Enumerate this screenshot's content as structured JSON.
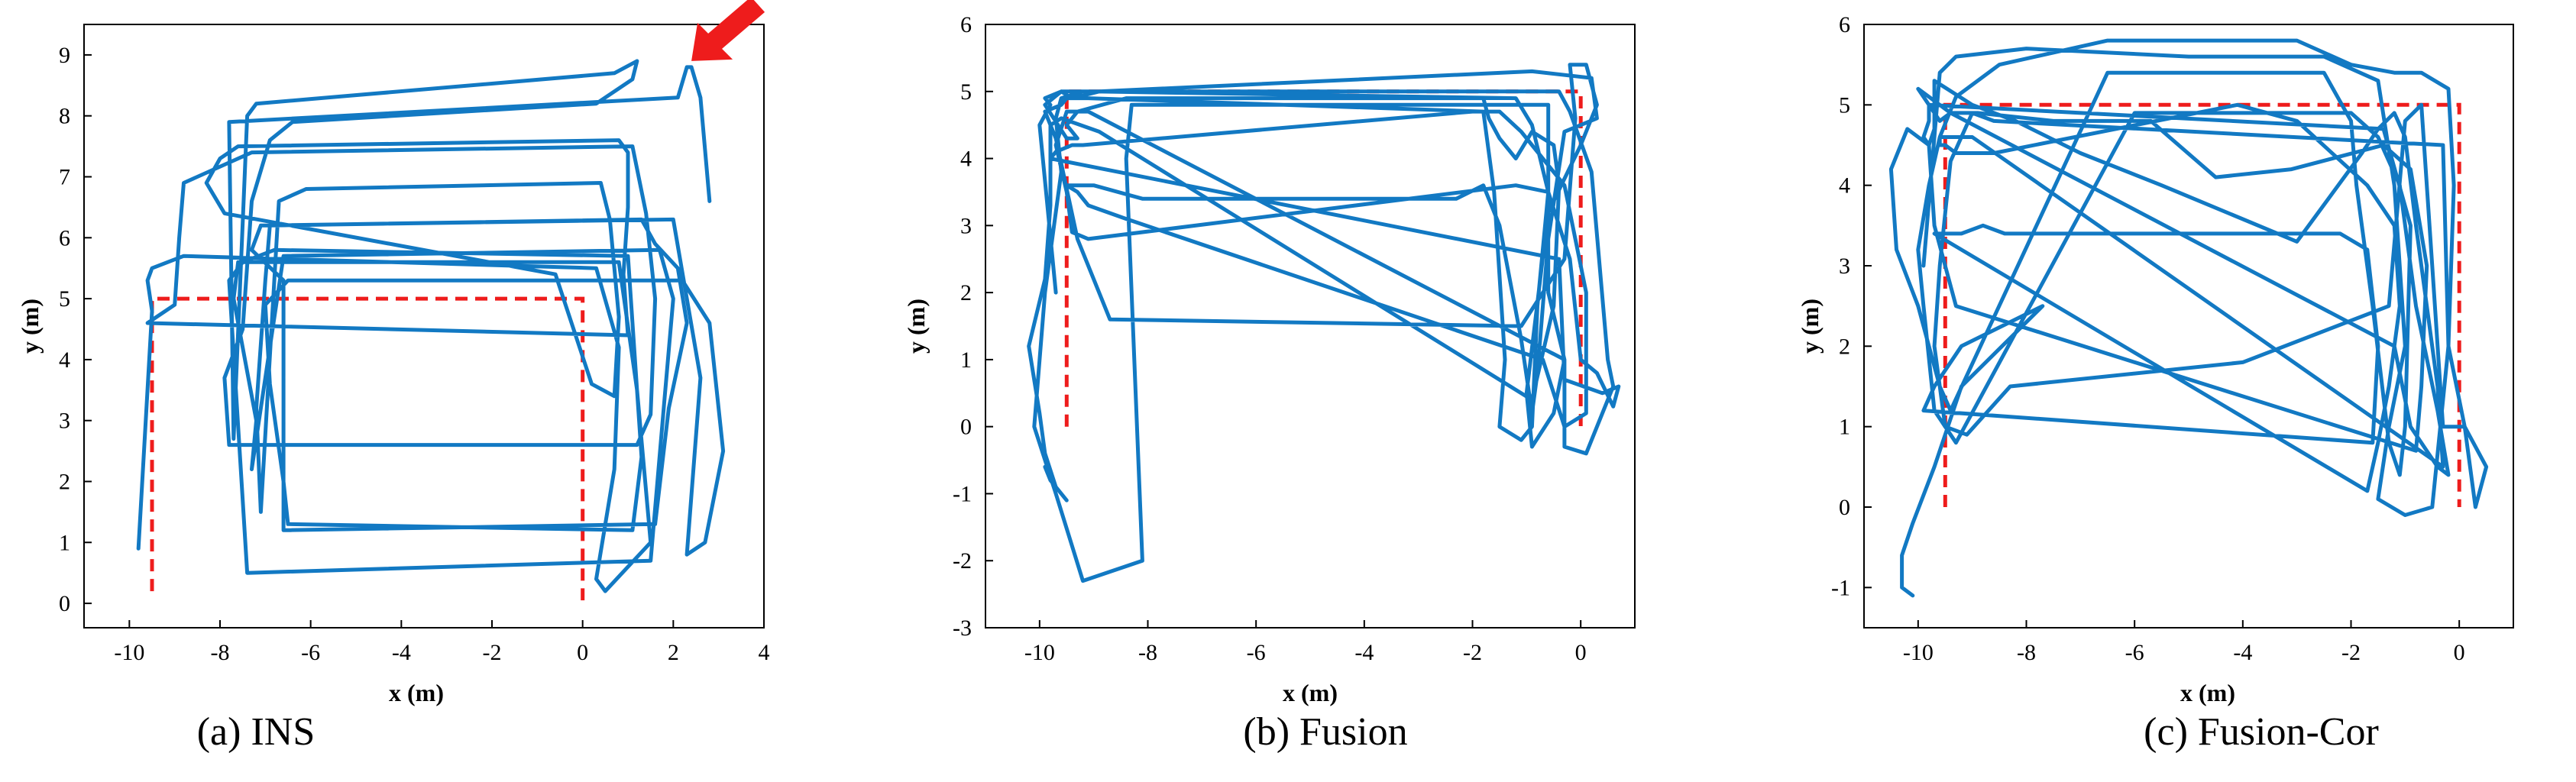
{
  "chart_data": [
    {
      "type": "line",
      "caption": "(a) INS",
      "xlabel": "x (m)",
      "ylabel": "y (m)",
      "xlim": [
        -11,
        4
      ],
      "ylim": [
        -0.4,
        9.5
      ],
      "xticks": [
        -10,
        -8,
        -6,
        -4,
        -2,
        0,
        2,
        4
      ],
      "yticks": [
        0,
        1,
        2,
        3,
        4,
        5,
        6,
        7,
        8,
        9
      ],
      "grid": false,
      "annotation": "red arrow pointing to end of trajectory (top-right)",
      "colors": {
        "trajectory": "#1279c3",
        "reference": "#ee1c1c"
      },
      "series": [
        {
          "style": "dashed-red",
          "x": [
            -9.5,
            -9.5,
            0,
            0
          ],
          "y": [
            0.2,
            5.0,
            5.0,
            0.05
          ]
        },
        {
          "style": "solid-blue",
          "x": [
            -9.8,
            -9.5,
            -9.6,
            -9.5,
            -8.8,
            0.3,
            0.8,
            0.7,
            0.3,
            0.5,
            1.5,
            1.2,
            0.8,
            -7.6,
            -7.7,
            -7.2,
            -7.3,
            -6.6,
            1.7,
            2.0,
            1.8,
            1.5,
            -7.4,
            -7.8,
            -7.5,
            -6.8,
            1.0,
            1.3,
            1.1,
            -6.5,
            -6.6,
            -6.9,
            -7.0,
            -6.5,
            2.2,
            2.8,
            3.1,
            2.7,
            2.3,
            2.6,
            2.0,
            -7.1,
            -7.3,
            -6.6,
            -6.6,
            1.6,
            1.9,
            2.3,
            2.1,
            1.6,
            1.3,
            -6.9,
            -7.0,
            -7.2,
            -7.1,
            -6.7,
            -6.1,
            0.4,
            0.6,
            0.8,
            0.7,
            0.2,
            -0.6,
            -7.9,
            -8.3,
            -8.0,
            -7.6,
            0.8,
            1.0,
            1.0,
            0.9,
            1.0,
            -9.6,
            -9.0,
            -8.9,
            -8.8,
            -7.3,
            1.1,
            1.4,
            1.6,
            1.5,
            1.2,
            -7.8,
            -7.9,
            -7.5,
            -7.3,
            -6.9,
            -6.4,
            0.3,
            1.1,
            1.2,
            0.7,
            -7.2,
            -7.4,
            -7.7,
            -7.8,
            2.1,
            2.3,
            2.4,
            2.6,
            2.8
          ],
          "y": [
            0.9,
            4.8,
            5.3,
            5.5,
            5.7,
            5.5,
            4.2,
            2.2,
            0.4,
            0.2,
            1.0,
            3.5,
            5.6,
            5.6,
            5.0,
            3.0,
            2.2,
            5.7,
            5.8,
            5.0,
            3.3,
            0.7,
            0.5,
            5.3,
            5.6,
            5.8,
            5.7,
            2.4,
            1.2,
            1.3,
            2.0,
            3.6,
            4.9,
            5.3,
            5.3,
            4.6,
            2.5,
            1.0,
            0.8,
            3.7,
            6.3,
            6.2,
            5.8,
            5.3,
            1.2,
            1.3,
            3.2,
            4.6,
            5.5,
            5.9,
            6.3,
            6.2,
            5.3,
            3.2,
            1.5,
            6.6,
            6.8,
            6.9,
            6.3,
            4.7,
            3.4,
            3.6,
            5.4,
            6.4,
            6.9,
            7.3,
            7.5,
            7.6,
            7.4,
            6.5,
            5.4,
            4.4,
            4.6,
            4.9,
            6.0,
            6.9,
            7.4,
            7.5,
            6.4,
            5.0,
            3.1,
            2.6,
            2.6,
            3.7,
            4.5,
            6.6,
            7.6,
            7.9,
            8.2,
            8.6,
            8.9,
            8.7,
            8.2,
            8.0,
            2.7,
            7.9,
            8.3,
            8.8,
            8.8,
            8.3,
            6.6
          ]
        }
      ]
    },
    {
      "type": "line",
      "caption": "(b) Fusion",
      "xlabel": "x (m)",
      "ylabel": "y (m)",
      "xlim": [
        -11,
        1
      ],
      "ylim": [
        -3,
        6
      ],
      "xticks": [
        -10,
        -8,
        -6,
        -4,
        -2,
        0
      ],
      "yticks": [
        -3,
        -2,
        -1,
        0,
        1,
        2,
        3,
        4,
        5,
        6
      ],
      "grid": false,
      "colors": {
        "trajectory": "#1279c3",
        "reference": "#ee1c1c"
      },
      "series": [
        {
          "style": "dashed-red",
          "x": [
            -9.5,
            -9.5,
            0,
            0
          ],
          "y": [
            0.0,
            5.0,
            5.0,
            0.0
          ]
        },
        {
          "style": "solid-blue",
          "x": [
            -9.7,
            -10.0,
            -9.8,
            -9.9,
            -9.6,
            -9.0,
            -1.2,
            -0.9,
            -0.6,
            -0.6,
            -0.3,
            -0.5,
            -0.9,
            -1.0,
            -0.6,
            0.0,
            0.3,
            0.1,
            -0.2,
            -0.1,
            -0.3,
            -1.1,
            -8.7,
            -9.3,
            -9.7,
            -9.9,
            -9.6,
            -9.5,
            -9.1,
            -1.8,
            -1.6,
            -1.4,
            -1.5,
            -1.1,
            -0.9,
            -0.8,
            -0.6,
            -0.6,
            -7.5,
            -8.3,
            -8.4,
            -8.1,
            -9.2,
            -9.7,
            -10.1,
            -9.9,
            -9.6,
            -9.7,
            -9.6,
            -9.2,
            -0.4,
            -0.2,
            0.2,
            0.5,
            0.6,
            0.1,
            -0.3,
            -0.3,
            -9.1,
            -9.5,
            -9.7,
            -9.5,
            -9.4,
            -9.1,
            -1.2,
            -0.6,
            -0.2,
            0.0,
            0.3,
            0.6,
            0.7,
            0.4,
            -0.3,
            -0.4,
            -9.8,
            -9.7,
            -9.4,
            -9.2,
            -2.0,
            -1.5,
            -1.1,
            -0.9,
            -0.3,
            0.1,
            0.1,
            -0.3,
            -0.7,
            -8.4,
            -9.1,
            -9.3,
            -9.5,
            -9.2,
            -9.0,
            -8.1,
            -2.3,
            -1.8,
            -1.5,
            -1.1,
            -0.9,
            -0.8,
            -0.6,
            -0.3,
            0.3,
            0.2,
            -0.9,
            -8.9,
            -9.4,
            -9.6,
            -9.9,
            -9.5,
            -9.3,
            -9.5,
            -9.3,
            -8.4,
            -1.8,
            -1.7,
            -1.5,
            -1.2,
            -0.9,
            -0.5,
            -0.4,
            -0.5,
            -0.9,
            -8.9,
            -9.6,
            -9.8,
            -9.8,
            -9.9,
            -10.2,
            -10.0,
            -9.9,
            -9.7,
            -9.5,
            -9.8,
            -9.9
          ],
          "y": [
            2.0,
            4.5,
            4.8,
            4.9,
            5.0,
            5.0,
            4.9,
            4.5,
            3.5,
            2.0,
            1.0,
            0.2,
            -0.3,
            0.5,
            3.2,
            4.2,
            4.8,
            5.4,
            5.4,
            4.6,
            2.5,
            1.5,
            1.6,
            2.8,
            4.3,
            4.7,
            4.8,
            4.9,
            4.9,
            4.7,
            3.5,
            1.0,
            0.0,
            -0.2,
            0.0,
            1.8,
            3.5,
            4.8,
            4.8,
            4.8,
            4.0,
            -2.0,
            -2.3,
            -1.0,
            0.0,
            2.0,
            3.8,
            4.6,
            4.9,
            5.0,
            5.0,
            4.7,
            3.8,
            1.0,
            0.6,
            -0.4,
            -0.3,
            1.0,
            4.7,
            4.7,
            4.2,
            3.5,
            2.9,
            2.8,
            3.6,
            3.5,
            2.5,
            1.0,
            0.8,
            0.3,
            0.6,
            0.5,
            0.7,
            2.5,
            4.0,
            4.1,
            4.2,
            4.2,
            4.7,
            4.7,
            4.4,
            4.2,
            3.6,
            2.0,
            0.2,
            0.0,
            1.0,
            3.1,
            3.3,
            3.5,
            3.6,
            3.6,
            3.6,
            3.4,
            3.4,
            3.6,
            3.0,
            1.3,
            0.2,
            0.8,
            2.8,
            4.4,
            4.6,
            5.2,
            5.3,
            5.0,
            4.9,
            5.0,
            4.8,
            4.3,
            4.3,
            4.5,
            4.7,
            4.9,
            4.9,
            4.6,
            4.3,
            4.0,
            4.4,
            4.2,
            3.6,
            1.8,
            0.4,
            4.4,
            4.6,
            4.5,
            3.3,
            2.2,
            1.2,
            0.2,
            -0.4,
            -0.9,
            -1.1,
            -0.8,
            -0.6
          ]
        }
      ]
    },
    {
      "type": "line",
      "caption": "(c) Fusion-Cor",
      "xlabel": "x (m)",
      "ylabel": "y (m)",
      "xlim": [
        -11,
        1
      ],
      "ylim": [
        -1.5,
        6
      ],
      "xticks": [
        -10,
        -8,
        -6,
        -4,
        -2,
        0
      ],
      "yticks": [
        -1,
        0,
        1,
        2,
        3,
        4,
        5,
        6
      ],
      "grid": false,
      "colors": {
        "trajectory": "#1279c3",
        "reference": "#ee1c1c"
      },
      "series": [
        {
          "style": "dashed-red",
          "x": [
            -9.5,
            -9.5,
            0,
            0
          ],
          "y": [
            0.0,
            5.0,
            5.0,
            0.0
          ]
        },
        {
          "style": "solid-blue",
          "x": [
            -9.9,
            -9.6,
            -9.3,
            -8.0,
            -5.0,
            -2.5,
            -1.5,
            -1.2,
            -1.0,
            -1.3,
            -1.5,
            -1.0,
            -0.5,
            -0.2,
            -0.1,
            -0.2,
            -0.7,
            -1.2,
            -2.0,
            -3.0,
            -6.5,
            -8.5,
            -9.3,
            -9.6,
            -9.8,
            -10.0,
            -9.9,
            -9.7,
            -9.5,
            -9.1,
            -8.3,
            -4.0,
            -1.3,
            -1.0,
            -0.7,
            -0.5,
            -0.3,
            0.1,
            0.3,
            0.5,
            0.1,
            -0.2,
            -0.3,
            -8.6,
            -9.0,
            -9.4,
            -9.6,
            -9.7,
            -9.5,
            -9.3,
            -6.0,
            -2.0,
            -1.5,
            -1.1,
            -0.8,
            -0.4,
            -0.2,
            -0.4,
            -0.9,
            -1.2,
            -9.4,
            -9.8,
            -10.0,
            -9.6,
            -9.4,
            -8.9,
            -7.5,
            -5.7,
            -4.5,
            -3.1,
            -1.4,
            -0.9,
            -0.6,
            -0.7,
            -0.8,
            -9.3,
            -9.7,
            -9.8,
            -10.2,
            -10.5,
            -10.4,
            -10.0,
            -9.6,
            -9.4,
            -6.5,
            -2.5,
            -2.0,
            -1.9,
            -1.6,
            -1.3,
            -1.1,
            -1.0,
            -0.9,
            -1.4,
            -9.8,
            -9.8,
            -9.9,
            -9.8,
            -9.7,
            -9.7,
            -9.0,
            -8.2,
            -7.0,
            -5.5,
            -3.0,
            -1.8,
            -1.5,
            -1.2,
            -1.0,
            -0.8,
            -0.6,
            -0.4,
            -0.3,
            -9.0,
            -9.6,
            -9.6,
            -9.5,
            -9.3,
            -9.2,
            -8.6,
            -4.1,
            -3.0,
            -1.7,
            -1.2,
            -1.1,
            -1.3,
            -1.5,
            -1.7,
            -9.7,
            -9.4,
            -9.2,
            -8.8,
            -8.4,
            -4.0,
            -2.2,
            -1.7,
            -1.5,
            -1.6,
            -9.9,
            -9.7,
            -9.2,
            -8.6,
            -7.7,
            -9.2,
            -9.7,
            -10.1,
            -10.3,
            -10.3,
            -10.1
          ],
          "y": [
            3.0,
            5.4,
            5.6,
            5.7,
            5.6,
            5.6,
            5.3,
            4.0,
            2.0,
            1.0,
            0.1,
            -0.1,
            0.0,
            2.0,
            4.0,
            5.2,
            5.4,
            5.4,
            5.5,
            5.8,
            5.8,
            5.5,
            5.1,
            4.6,
            4.0,
            3.2,
            2.5,
            1.2,
            1.0,
            0.9,
            1.5,
            1.8,
            2.5,
            4.8,
            5.0,
            3.0,
            1.0,
            1.0,
            0.0,
            0.5,
            1.0,
            2.0,
            4.5,
            4.8,
            4.9,
            4.3,
            3.0,
            2.0,
            1.0,
            0.8,
            4.9,
            4.9,
            4.6,
            4.0,
            2.5,
            1.2,
            0.4,
            0.5,
            1.0,
            2.0,
            4.9,
            5.1,
            5.2,
            4.8,
            4.9,
            4.9,
            4.8,
            4.8,
            4.1,
            4.2,
            4.5,
            4.2,
            3.0,
            1.5,
            0.7,
            2.5,
            3.5,
            4.5,
            4.7,
            4.2,
            3.2,
            2.5,
            1.5,
            1.2,
            5.4,
            5.4,
            4.8,
            4.0,
            2.5,
            0.8,
            0.4,
            1.0,
            3.5,
            4.7,
            5.0,
            4.8,
            4.6,
            4.5,
            4.7,
            5.3,
            5.0,
            4.8,
            4.4,
            4.0,
            3.3,
            4.4,
            4.7,
            4.9,
            4.6,
            3.5,
            2.5,
            1.5,
            0.5,
            4.6,
            4.6,
            4.5,
            4.5,
            4.4,
            4.4,
            4.4,
            5.0,
            4.8,
            4.0,
            3.5,
            2.5,
            1.5,
            0.8,
            0.2,
            3.4,
            3.4,
            3.4,
            3.5,
            3.4,
            3.4,
            3.4,
            3.2,
            2.0,
            0.8,
            1.2,
            1.5,
            2.0,
            2.2,
            2.5,
            1.5,
            0.5,
            -0.2,
            -0.6,
            -1.0,
            -1.1
          ]
        }
      ]
    }
  ]
}
